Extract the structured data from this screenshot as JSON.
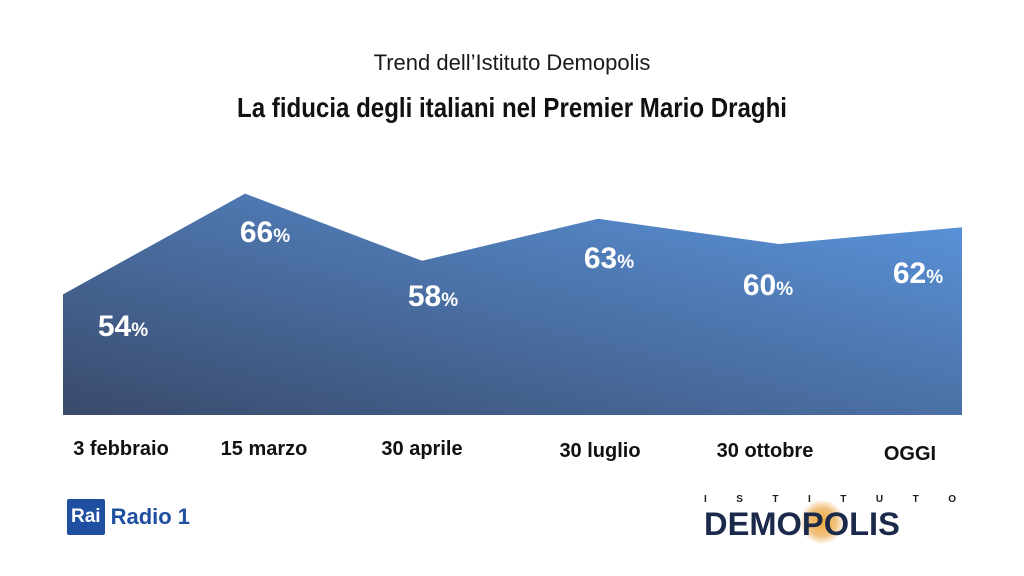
{
  "header": {
    "subtitle": "Trend dell’Istituto Demopolis",
    "title": "La fiducia degli italiani nel Premier Mario Draghi"
  },
  "colors": {
    "area_dark": "#3a4a6b",
    "area_light": "#5b97e0",
    "label_text": "#ffffff",
    "category_text": "#111111"
  },
  "chart_data": {
    "type": "area",
    "categories": [
      "3 febbraio",
      "15 marzo",
      "30 aprile",
      "30 luglio",
      "30 ottobre",
      "OGGI"
    ],
    "values": [
      54,
      66,
      58,
      63,
      60,
      62
    ],
    "value_suffix": "%",
    "grid": false,
    "legend": "none"
  },
  "logos": {
    "rai_box": "Rai",
    "rai_radio": "Radio 1",
    "demopolis_top": [
      "I",
      "S",
      "T",
      "I",
      "T",
      "U",
      "T",
      "O"
    ],
    "demopolis_word": "DEMOPOLIS"
  }
}
